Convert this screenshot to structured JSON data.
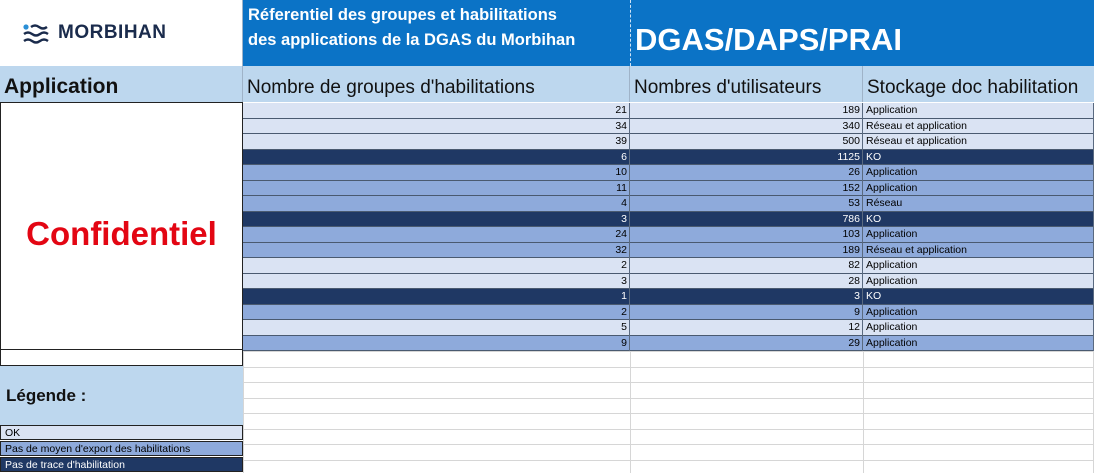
{
  "logo": {
    "text": "MORBIHAN",
    "icon": "morbihan-waves-icon"
  },
  "title": {
    "line1": "Réferentiel des groupes et habilitations",
    "line2": "des applications de la DGAS du Morbihan",
    "main": "DGAS/DAPS/PRAI"
  },
  "headers": {
    "application": "Application",
    "groups": "Nombre de groupes d'habilitations",
    "users": "Nombres d'utilisateurs",
    "storage": "Stockage doc habilitation"
  },
  "confidential": "Confidentiel",
  "colors": {
    "ok": "#dae3f3",
    "no_export": "#8eaadb",
    "no_trace": "#1f3864",
    "header_blue": "#0b73c6",
    "header_light": "#bdd7ee",
    "confidential_red": "#e30613"
  },
  "rows": [
    {
      "groups": "21",
      "users": "189",
      "storage": "Application",
      "status": "ok"
    },
    {
      "groups": "34",
      "users": "340",
      "storage": "Réseau et application",
      "status": "ok"
    },
    {
      "groups": "39",
      "users": "500",
      "storage": "Réseau et application",
      "status": "ok"
    },
    {
      "groups": "6",
      "users": "1125",
      "storage": "KO",
      "status": "no_trace"
    },
    {
      "groups": "10",
      "users": "26",
      "storage": "Application",
      "status": "no_export"
    },
    {
      "groups": "11",
      "users": "152",
      "storage": "Application",
      "status": "no_export"
    },
    {
      "groups": "4",
      "users": "53",
      "storage": "Réseau",
      "status": "no_export"
    },
    {
      "groups": "3",
      "users": "786",
      "storage": "KO",
      "status": "no_trace"
    },
    {
      "groups": "24",
      "users": "103",
      "storage": "Application",
      "status": "no_export"
    },
    {
      "groups": "32",
      "users": "189",
      "storage": "Réseau et application",
      "status": "no_export"
    },
    {
      "groups": "2",
      "users": "82",
      "storage": "Application",
      "status": "ok"
    },
    {
      "groups": "3",
      "users": "28",
      "storage": "Application",
      "status": "ok"
    },
    {
      "groups": "1",
      "users": "3",
      "storage": "KO",
      "status": "no_trace"
    },
    {
      "groups": "2",
      "users": "9",
      "storage": "Application",
      "status": "no_export"
    },
    {
      "groups": "5",
      "users": "12",
      "storage": "Application",
      "status": "ok"
    },
    {
      "groups": "9",
      "users": "29",
      "storage": "Application",
      "status": "no_export"
    }
  ],
  "legend": {
    "title": "Légende :",
    "items": [
      {
        "label": "OK",
        "status": "ok"
      },
      {
        "label": "Pas de moyen d'export des habilitations",
        "status": "no_export"
      },
      {
        "label": "Pas de trace d'habilitation",
        "status": "no_trace"
      }
    ]
  }
}
